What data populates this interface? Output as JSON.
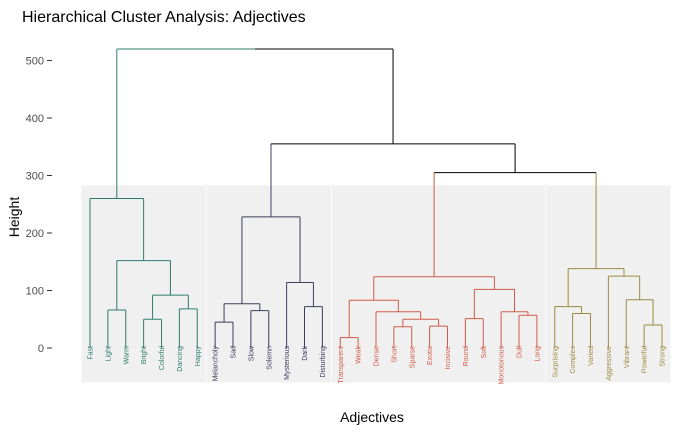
{
  "chart_data": {
    "type": "dendrogram",
    "title": "Hierarchical Cluster Analysis: Adjectives",
    "xlabel": "Adjectives",
    "ylabel": "Height",
    "ylim": [
      -60,
      545
    ],
    "y_ticks": [
      0,
      100,
      200,
      300,
      400,
      500
    ],
    "leaves": [
      "Fast",
      "Light",
      "Warm",
      "Bright",
      "Colorful",
      "Dancing",
      "Happy",
      "Melancholy",
      "Sad",
      "Slow",
      "Solemn",
      "Mysterious",
      "Dark",
      "Disturbing",
      "Transparent",
      "Weak",
      "Dense",
      "Short",
      "Sparse",
      "Exotic",
      "Incisive",
      "Round",
      "Soft",
      "Monotonous",
      "Dull",
      "Long",
      "Surprising",
      "Complex",
      "Varied",
      "Aggressive",
      "Vibrant",
      "Powerful",
      "Strong"
    ],
    "clusters": [
      {
        "color": "#2e7d6b",
        "leaves": [
          0,
          6
        ]
      },
      {
        "color": "#3d3d5c",
        "leaves": [
          7,
          13
        ]
      },
      {
        "color": "#d05a48",
        "leaves": [
          14,
          25
        ]
      },
      {
        "color": "#9a8a3e",
        "leaves": [
          26,
          32
        ]
      }
    ],
    "merges": [
      {
        "a": 1,
        "b": 2,
        "h": 66
      },
      {
        "a": 3,
        "b": 4,
        "h": 50
      },
      {
        "a": 5,
        "b": 6,
        "h": 68
      },
      {
        "a": "m1",
        "b": "m2",
        "h": 92
      },
      {
        "a": "m0",
        "b": "m3",
        "h": 152
      },
      {
        "a": 0,
        "b": "m4",
        "h": 260
      },
      {
        "a": 7,
        "b": 8,
        "h": 45
      },
      {
        "a": 9,
        "b": 10,
        "h": 65
      },
      {
        "a": "m6",
        "b": "m7",
        "h": 77
      },
      {
        "a": 12,
        "b": 13,
        "h": 72
      },
      {
        "a": 11,
        "b": "m9",
        "h": 114
      },
      {
        "a": "m8",
        "b": "m10",
        "h": 228
      },
      {
        "a": 14,
        "b": 15,
        "h": 18
      },
      {
        "a": 17,
        "b": 18,
        "h": 37
      },
      {
        "a": 19,
        "b": 20,
        "h": 38
      },
      {
        "a": "m13",
        "b": "m14",
        "h": 50
      },
      {
        "a": 16,
        "b": "m15",
        "h": 63
      },
      {
        "a": "m12",
        "b": "m16",
        "h": 83
      },
      {
        "a": 21,
        "b": 22,
        "h": 51
      },
      {
        "a": 24,
        "b": 25,
        "h": 57
      },
      {
        "a": 23,
        "b": "m19",
        "h": 63
      },
      {
        "a": "m18",
        "b": "m20",
        "h": 102
      },
      {
        "a": "m17",
        "b": "m21",
        "h": 124
      },
      {
        "a": 27,
        "b": 28,
        "h": 60
      },
      {
        "a": 26,
        "b": "m23",
        "h": 72
      },
      {
        "a": 31,
        "b": 32,
        "h": 40
      },
      {
        "a": 30,
        "b": "m25",
        "h": 84
      },
      {
        "a": 29,
        "b": "m26",
        "h": 125
      },
      {
        "a": "m24",
        "b": "m27",
        "h": 138
      },
      {
        "a": "m22",
        "b": "m28",
        "h": 305
      },
      {
        "a": "m11",
        "b": "m29",
        "h": 355
      },
      {
        "a": "m5",
        "b": "m30",
        "h": 520
      }
    ],
    "root_color": "#2e7d6b",
    "link_color": "#000000",
    "panel_color": "#f0f0f0",
    "grid": false,
    "legend": "none"
  }
}
